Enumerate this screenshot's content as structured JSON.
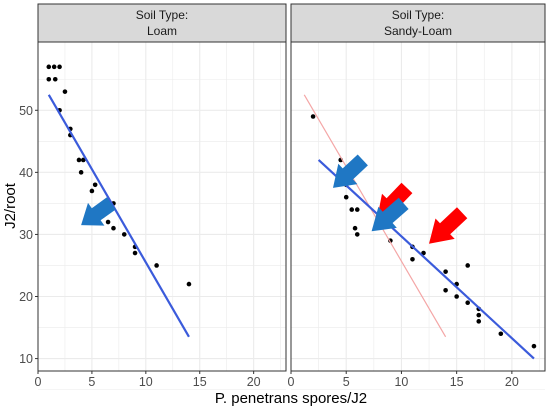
{
  "chart_data": {
    "type": "scatter",
    "xlabel": "P. penetrans spores/J2",
    "ylabel": "J2/root",
    "xlim": [
      0,
      23
    ],
    "ylim": [
      8,
      61
    ],
    "x_ticks": [
      0,
      5,
      10,
      15,
      20
    ],
    "y_ticks": [
      10,
      20,
      30,
      40,
      50
    ],
    "grid": true,
    "colors": {
      "points": "#000000",
      "fit_line": "#3b5bdb",
      "reference_line": "#f4a6a6",
      "blue_arrow": "#1f77c4",
      "red_arrow": "#ff0000",
      "strip_fill": "#d9d9d9",
      "grid": "#ebebeb"
    },
    "facets": [
      {
        "strip_line1": "Soil Type:",
        "strip_line2": "Loam",
        "points": [
          {
            "x": 1.0,
            "y": 57
          },
          {
            "x": 1.5,
            "y": 57
          },
          {
            "x": 2.0,
            "y": 57
          },
          {
            "x": 1.0,
            "y": 55
          },
          {
            "x": 1.6,
            "y": 55
          },
          {
            "x": 2.5,
            "y": 53
          },
          {
            "x": 2.0,
            "y": 50
          },
          {
            "x": 3.0,
            "y": 47
          },
          {
            "x": 3.0,
            "y": 46
          },
          {
            "x": 3.8,
            "y": 42
          },
          {
            "x": 4.2,
            "y": 42
          },
          {
            "x": 4.0,
            "y": 40
          },
          {
            "x": 5.3,
            "y": 38
          },
          {
            "x": 5.0,
            "y": 37
          },
          {
            "x": 7.0,
            "y": 35
          },
          {
            "x": 6.0,
            "y": 33
          },
          {
            "x": 6.5,
            "y": 32
          },
          {
            "x": 7.0,
            "y": 31
          },
          {
            "x": 8.0,
            "y": 30
          },
          {
            "x": 9.0,
            "y": 28
          },
          {
            "x": 9.0,
            "y": 27
          },
          {
            "x": 11.0,
            "y": 25
          },
          {
            "x": 14.0,
            "y": 22
          }
        ],
        "fit_line": {
          "x": [
            1.0,
            14.0
          ],
          "y": [
            52.5,
            13.5
          ]
        },
        "reference_line": null,
        "blue_arrows": [
          {
            "tip": {
              "x": 4.0,
              "y": 31.5
            },
            "from": {
              "x": 6.8,
              "y": 35
            }
          }
        ],
        "red_arrows": []
      },
      {
        "strip_line1": "Soil Type:",
        "strip_line2": "Sandy-Loam",
        "points": [
          {
            "x": 2.0,
            "y": 49
          },
          {
            "x": 4.5,
            "y": 42
          },
          {
            "x": 5.0,
            "y": 38
          },
          {
            "x": 5.0,
            "y": 36
          },
          {
            "x": 5.5,
            "y": 34
          },
          {
            "x": 6.0,
            "y": 34
          },
          {
            "x": 5.8,
            "y": 31
          },
          {
            "x": 6.0,
            "y": 30
          },
          {
            "x": 9.0,
            "y": 29
          },
          {
            "x": 11.0,
            "y": 28
          },
          {
            "x": 12.0,
            "y": 27
          },
          {
            "x": 11.0,
            "y": 26
          },
          {
            "x": 14.0,
            "y": 24
          },
          {
            "x": 15.0,
            "y": 22
          },
          {
            "x": 14.0,
            "y": 21
          },
          {
            "x": 15.0,
            "y": 20
          },
          {
            "x": 16.0,
            "y": 19
          },
          {
            "x": 17.0,
            "y": 18
          },
          {
            "x": 17.0,
            "y": 17
          },
          {
            "x": 17.0,
            "y": 16
          },
          {
            "x": 16.0,
            "y": 25
          },
          {
            "x": 19.0,
            "y": 14
          },
          {
            "x": 22.0,
            "y": 12
          }
        ],
        "fit_line": {
          "x": [
            2.5,
            22.0
          ],
          "y": [
            42.0,
            10.0
          ]
        },
        "reference_line": {
          "x": [
            1.2,
            14.0
          ],
          "y": [
            52.5,
            13.5
          ]
        },
        "blue_arrows": [
          {
            "tip": {
              "x": 3.8,
              "y": 37.5
            },
            "from": {
              "x": 6.5,
              "y": 42
            }
          },
          {
            "tip": {
              "x": 7.3,
              "y": 30.5
            },
            "from": {
              "x": 10.2,
              "y": 35
            }
          }
        ],
        "red_arrows": [
          {
            "tip": {
              "x": 7.8,
              "y": 32.5
            },
            "from": {
              "x": 10.5,
              "y": 37.5
            }
          },
          {
            "tip": {
              "x": 12.5,
              "y": 28.5
            },
            "from": {
              "x": 15.5,
              "y": 33.5
            }
          }
        ]
      }
    ]
  }
}
